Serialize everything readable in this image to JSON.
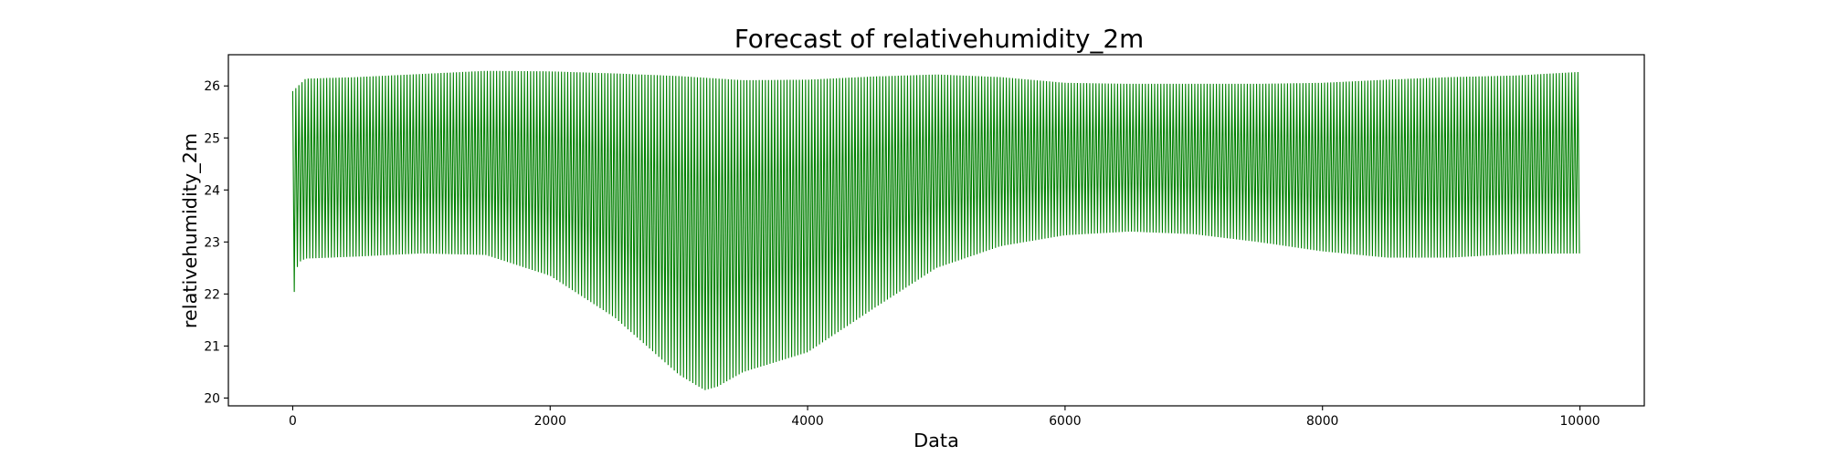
{
  "chart_data": {
    "type": "line",
    "title": "Forecast of relativehumidity_2m",
    "xlabel": "Data",
    "ylabel": "relativehumidity_2m",
    "xlim": [
      -500,
      10500
    ],
    "ylim": [
      19.85,
      26.6
    ],
    "x_ticks": [
      0,
      2000,
      4000,
      6000,
      8000,
      10000
    ],
    "y_ticks": [
      20,
      21,
      22,
      23,
      24,
      25,
      26
    ],
    "grid": false,
    "legend": "none",
    "colors": {
      "series": "#008000",
      "axes": "#000000",
      "background": "#ffffff"
    },
    "series": [
      {
        "oscillation_period": 24,
        "x_range": [
          0,
          10000
        ],
        "upper_envelope": [
          [
            0,
            25.9
          ],
          [
            100,
            26.14
          ],
          [
            500,
            26.17
          ],
          [
            1000,
            26.23
          ],
          [
            1500,
            26.29
          ],
          [
            2000,
            26.28
          ],
          [
            2500,
            26.24
          ],
          [
            3000,
            26.19
          ],
          [
            3500,
            26.11
          ],
          [
            4000,
            26.12
          ],
          [
            4500,
            26.18
          ],
          [
            5000,
            26.22
          ],
          [
            5500,
            26.17
          ],
          [
            6000,
            26.06
          ],
          [
            6500,
            26.04
          ],
          [
            7000,
            26.04
          ],
          [
            7500,
            26.04
          ],
          [
            8000,
            26.06
          ],
          [
            8500,
            26.12
          ],
          [
            9000,
            26.17
          ],
          [
            9500,
            26.2
          ],
          [
            10000,
            26.27
          ]
        ],
        "lower_envelope": [
          [
            0,
            21.8
          ],
          [
            40,
            22.6
          ],
          [
            100,
            22.68
          ],
          [
            500,
            22.72
          ],
          [
            1000,
            22.78
          ],
          [
            1500,
            22.75
          ],
          [
            2000,
            22.35
          ],
          [
            2500,
            21.55
          ],
          [
            3000,
            20.45
          ],
          [
            3200,
            20.15
          ],
          [
            3300,
            20.22
          ],
          [
            3500,
            20.5
          ],
          [
            4000,
            20.88
          ],
          [
            4500,
            21.7
          ],
          [
            5000,
            22.5
          ],
          [
            5500,
            22.92
          ],
          [
            6000,
            23.13
          ],
          [
            6500,
            23.2
          ],
          [
            7000,
            23.15
          ],
          [
            7500,
            23.0
          ],
          [
            8000,
            22.82
          ],
          [
            8500,
            22.7
          ],
          [
            9000,
            22.7
          ],
          [
            9500,
            22.77
          ],
          [
            10000,
            22.78
          ]
        ]
      }
    ]
  }
}
